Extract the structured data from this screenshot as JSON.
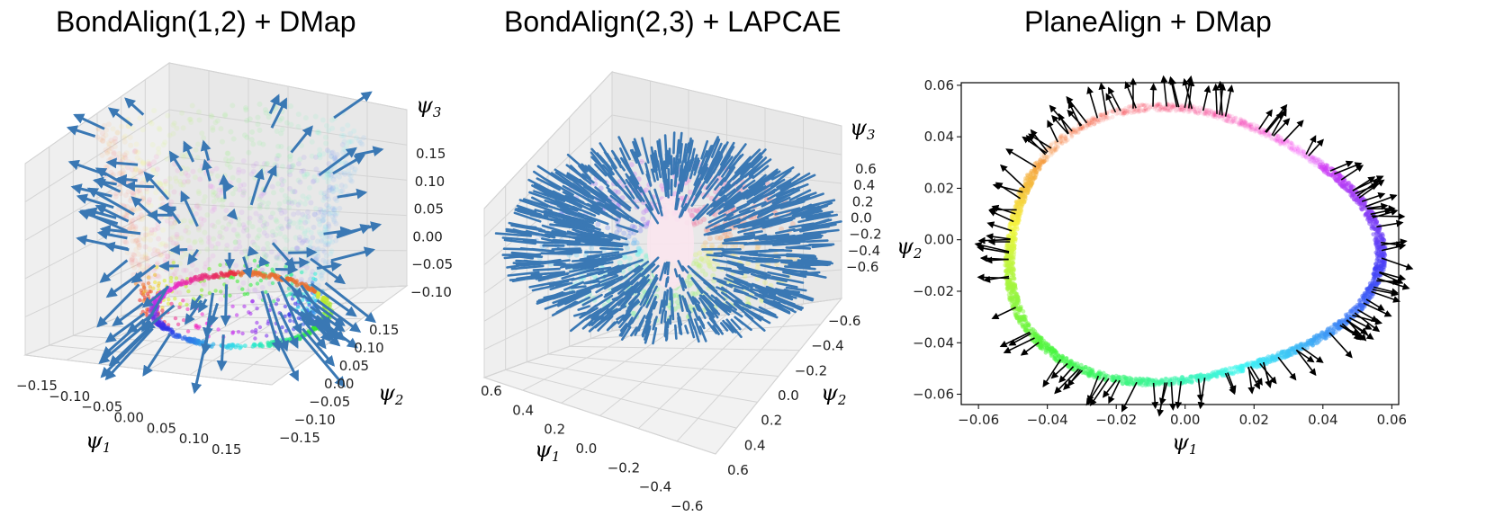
{
  "chart_data": [
    {
      "type": "scatter",
      "title": "BondAlign(1,2) + DMap",
      "projection": "3d",
      "xlabel": "ψ1",
      "ylabel": "ψ2",
      "zlabel": "ψ3",
      "x_ticks": [
        "−0.15",
        "−0.10",
        "−0.05",
        "0.00",
        "0.05",
        "0.10",
        "0.15"
      ],
      "y_ticks": [
        "−0.15",
        "−0.10",
        "−0.05",
        "0.00",
        "0.05",
        "0.10",
        "0.15"
      ],
      "z_ticks": [
        "0.15",
        "0.10",
        "0.05",
        "0.00",
        "−0.05",
        "−0.10"
      ],
      "xlim": [
        -0.15,
        0.15
      ],
      "ylim": [
        -0.15,
        0.15
      ],
      "zlim": [
        -0.1,
        0.15
      ],
      "grid": true,
      "arrow_color": "#3a78b4",
      "description_shape": "bowl-shaped point cloud colored by hue with outward arrows"
    },
    {
      "type": "scatter",
      "title": "BondAlign(2,3) + LAPCAE",
      "projection": "3d",
      "xlabel": "ψ1",
      "ylabel": "ψ2",
      "zlabel": "ψ3",
      "x_ticks": [
        "0.6",
        "0.4",
        "0.2",
        "0.0",
        "−0.2",
        "−0.4",
        "−0.6"
      ],
      "y_ticks": [
        "−0.6",
        "−0.4",
        "−0.2",
        "0.0",
        "0.2",
        "0.4",
        "0.6"
      ],
      "z_ticks": [
        "0.6",
        "0.4",
        "0.2",
        "0.0",
        "−0.2",
        "−0.4",
        "−0.6"
      ],
      "xlim": [
        0.6,
        -0.6
      ],
      "ylim": [
        -0.6,
        0.6
      ],
      "zlim": [
        -0.6,
        0.6
      ],
      "grid": true,
      "arrow_color": "#3a78b4"
    },
    {
      "type": "scatter",
      "title": "PlaneAlign + DMap",
      "xlabel": "ψ1",
      "ylabel": "ψ2",
      "x_ticks": [
        "−0.06",
        "−0.04",
        "−0.02",
        "0.00",
        "0.02",
        "0.04",
        "0.06"
      ],
      "y_ticks": [
        "0.06",
        "0.04",
        "0.02",
        "0.00",
        "−0.02",
        "−0.04",
        "−0.06"
      ],
      "xlim": [
        -0.065,
        0.062
      ],
      "ylim": [
        -0.064,
        0.061
      ],
      "grid": false,
      "arrow_color": "#000000",
      "ring": {
        "center_x": 0.0,
        "center_y": -0.003,
        "radius_x": 0.054,
        "radius_y": 0.053
      }
    }
  ]
}
